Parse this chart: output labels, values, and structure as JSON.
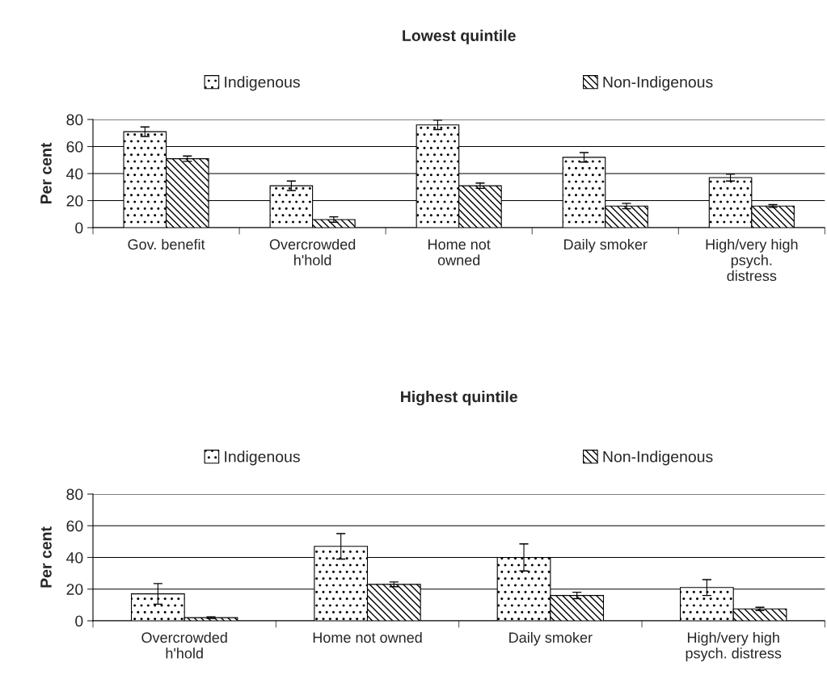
{
  "chart_data": [
    {
      "type": "bar",
      "title": "Lowest quintile",
      "ylabel": "Per cent",
      "categories": [
        "Gov. benefit",
        "Overcrowded\nh'hold",
        "Home not\nowned",
        "Daily smoker",
        "High/very high\npsych.\ndistress"
      ],
      "series": [
        {
          "name": "Indigenous",
          "color": "#000000",
          "values": [
            71,
            31,
            76,
            52,
            37
          ],
          "errors": [
            3.5,
            3.5,
            3.5,
            3.5,
            2.5
          ]
        },
        {
          "name": "Non-Indigenous",
          "color": "#000000",
          "values": [
            51,
            6,
            31,
            16,
            16
          ],
          "errors": [
            2,
            2,
            2,
            2,
            1
          ]
        }
      ],
      "ylim": [
        0,
        80
      ],
      "yticks": [
        0,
        20,
        40,
        60,
        80
      ],
      "grid": "y",
      "legend": "top"
    },
    {
      "type": "bar",
      "title": "Highest quintile",
      "ylabel": "Per cent",
      "categories": [
        "Overcrowded\nh'hold",
        "Home not owned",
        "Daily smoker",
        "High/very high\npsych. distress"
      ],
      "series": [
        {
          "name": "Indigenous",
          "color": "#000000",
          "values": [
            17,
            47,
            40,
            21
          ],
          "errors": [
            6.5,
            8,
            8.5,
            5
          ]
        },
        {
          "name": "Non-Indigenous",
          "color": "#000000",
          "values": [
            2,
            23,
            16,
            7.5
          ],
          "errors": [
            0.5,
            1.5,
            2,
            1
          ]
        }
      ],
      "ylim": [
        0,
        80
      ],
      "yticks": [
        0,
        20,
        40,
        60,
        80
      ],
      "grid": "y",
      "legend": "top"
    }
  ]
}
